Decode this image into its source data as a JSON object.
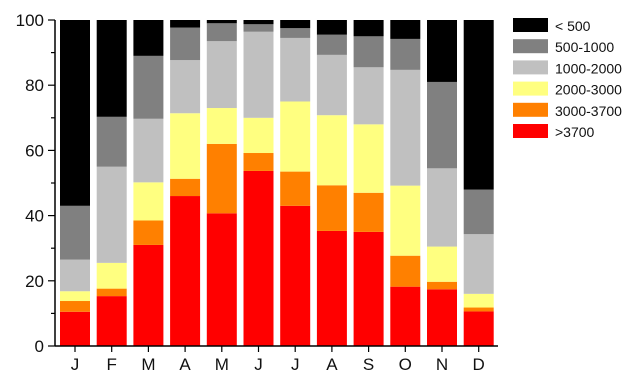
{
  "chart_data": {
    "type": "bar",
    "stacked": true,
    "percent_stacked": true,
    "categories": [
      "J",
      "F",
      "M",
      "A",
      "M",
      "J",
      "J",
      "A",
      "S",
      "O",
      "N",
      "D"
    ],
    "series": [
      {
        "name": ">3700",
        "color": "#ff0000",
        "values": [
          10.5,
          15.3,
          31.0,
          46.0,
          40.7,
          53.7,
          43.0,
          35.3,
          35.0,
          18.2,
          17.4,
          10.6
        ]
      },
      {
        "name": "3000-3700",
        "color": "#ff8000",
        "values": [
          3.3,
          2.3,
          7.5,
          5.3,
          21.3,
          5.5,
          10.5,
          14.0,
          12.0,
          9.5,
          2.3,
          1.2
        ]
      },
      {
        "name": "2000-3000",
        "color": "#ffff80",
        "values": [
          3.0,
          7.9,
          11.7,
          20.1,
          11.0,
          10.8,
          21.5,
          21.5,
          21.0,
          21.5,
          10.8,
          4.2
        ]
      },
      {
        "name": "1000-2000",
        "color": "#c0c0c0",
        "values": [
          9.7,
          29.5,
          19.5,
          16.3,
          20.5,
          26.4,
          19.5,
          18.5,
          17.5,
          35.5,
          24.0,
          18.3
        ]
      },
      {
        "name": "500-1000",
        "color": "#808080",
        "values": [
          16.5,
          15.3,
          19.3,
          10.0,
          5.5,
          2.3,
          3.0,
          6.2,
          9.5,
          9.5,
          26.5,
          13.7
        ]
      },
      {
        "name": "< 500",
        "color": "#000000",
        "values": [
          57.0,
          29.7,
          11.0,
          2.3,
          1.0,
          1.3,
          2.5,
          4.5,
          5.0,
          5.8,
          19.0,
          52.0
        ]
      }
    ],
    "legend_order": [
      "< 500",
      "500-1000",
      "1000-2000",
      "2000-3000",
      "3000-3700",
      ">3700"
    ],
    "ylim": [
      0,
      100
    ],
    "yticks": [
      0,
      20,
      40,
      60,
      80,
      100
    ],
    "xlabel": "",
    "ylabel": "",
    "title": "",
    "legend_position": "right",
    "grid": false
  }
}
